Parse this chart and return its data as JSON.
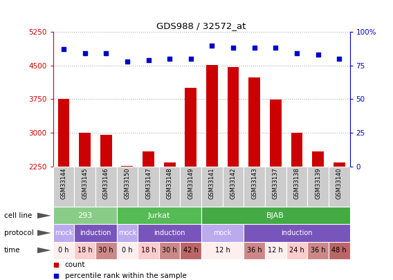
{
  "title": "GDS988 / 32572_at",
  "samples": [
    "GSM33144",
    "GSM33145",
    "GSM33146",
    "GSM33150",
    "GSM33147",
    "GSM33148",
    "GSM33149",
    "GSM33141",
    "GSM33142",
    "GSM33143",
    "GSM33137",
    "GSM33138",
    "GSM33139",
    "GSM33140"
  ],
  "counts": [
    3750,
    3000,
    2960,
    2260,
    2590,
    2330,
    4000,
    4510,
    4470,
    4230,
    3740,
    3000,
    2590,
    2330
  ],
  "percentile_ranks": [
    87,
    84,
    84,
    78,
    79,
    80,
    80,
    90,
    88,
    88,
    88,
    84,
    83,
    80
  ],
  "ylim_left": [
    2250,
    5250
  ],
  "ylim_right": [
    0,
    100
  ],
  "yticks_left": [
    2250,
    3000,
    3750,
    4500,
    5250
  ],
  "yticks_right": [
    0,
    25,
    50,
    75,
    100
  ],
  "ytick_labels_right": [
    "0",
    "25",
    "50",
    "75",
    "100%"
  ],
  "bar_color": "#cc0000",
  "dot_color": "#0000cc",
  "bar_bottom": 2250,
  "cell_line_groups": [
    {
      "label": "293",
      "start": 0,
      "end": 3,
      "color": "#88cc88"
    },
    {
      "label": "Jurkat",
      "start": 3,
      "end": 7,
      "color": "#55bb55"
    },
    {
      "label": "BJAB",
      "start": 7,
      "end": 14,
      "color": "#44aa44"
    }
  ],
  "protocol_groups": [
    {
      "label": "mock",
      "start": 0,
      "end": 1,
      "color": "#bbaaee"
    },
    {
      "label": "induction",
      "start": 1,
      "end": 3,
      "color": "#7755bb"
    },
    {
      "label": "mock",
      "start": 3,
      "end": 4,
      "color": "#bbaaee"
    },
    {
      "label": "induction",
      "start": 4,
      "end": 7,
      "color": "#7755bb"
    },
    {
      "label": "mock",
      "start": 7,
      "end": 9,
      "color": "#bbaaee"
    },
    {
      "label": "induction",
      "start": 9,
      "end": 14,
      "color": "#7755bb"
    }
  ],
  "time_groups": [
    {
      "label": "0 h",
      "start": 0,
      "end": 1,
      "color": "#ffeeee"
    },
    {
      "label": "18 h",
      "start": 1,
      "end": 2,
      "color": "#ffcccc"
    },
    {
      "label": "30 h",
      "start": 2,
      "end": 3,
      "color": "#cc8888"
    },
    {
      "label": "0 h",
      "start": 3,
      "end": 4,
      "color": "#ffeeee"
    },
    {
      "label": "18 h",
      "start": 4,
      "end": 5,
      "color": "#ffcccc"
    },
    {
      "label": "30 h",
      "start": 5,
      "end": 6,
      "color": "#cc8888"
    },
    {
      "label": "42 h",
      "start": 6,
      "end": 7,
      "color": "#bb6666"
    },
    {
      "label": "12 h",
      "start": 7,
      "end": 9,
      "color": "#ffeeee"
    },
    {
      "label": "36 h",
      "start": 9,
      "end": 10,
      "color": "#cc8888"
    },
    {
      "label": "12 h",
      "start": 10,
      "end": 11,
      "color": "#ffeeee"
    },
    {
      "label": "24 h",
      "start": 11,
      "end": 12,
      "color": "#ffcccc"
    },
    {
      "label": "36 h",
      "start": 12,
      "end": 13,
      "color": "#cc8888"
    },
    {
      "label": "48 h",
      "start": 13,
      "end": 14,
      "color": "#bb6666"
    }
  ],
  "row_labels": [
    "cell line",
    "protocol",
    "time"
  ],
  "legend_items": [
    {
      "label": "count",
      "color": "#cc0000"
    },
    {
      "label": "percentile rank within the sample",
      "color": "#0000cc"
    }
  ],
  "grid_color": "#aaaaaa",
  "axis_color_left": "#cc0000",
  "axis_color_right": "#0000cc",
  "sample_bg_color": "#cccccc",
  "sample_bg_edge": "#ffffff"
}
